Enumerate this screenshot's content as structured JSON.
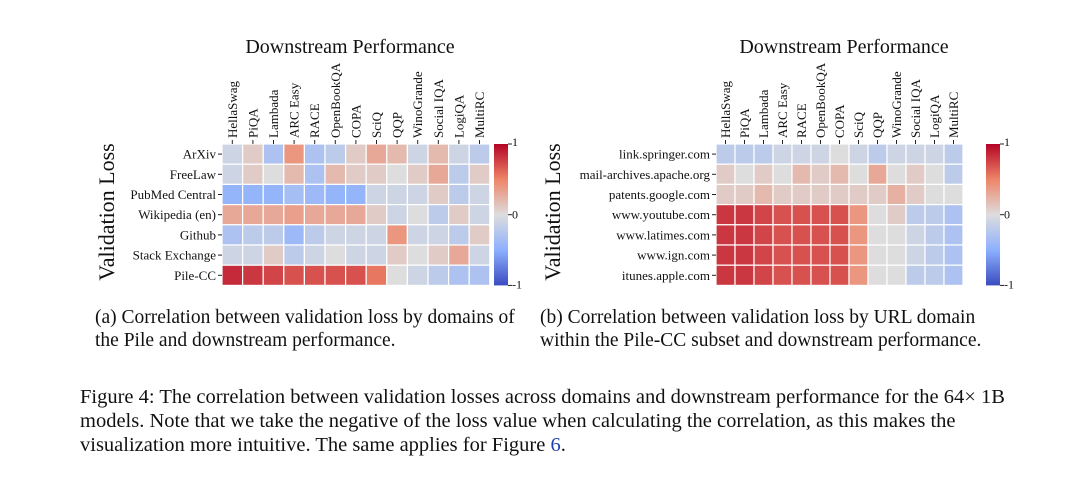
{
  "figure": {
    "label": "Figure 4:",
    "caption_text": "The correlation between validation losses across domains and downstream performance for the 64× 1B models. Note that we take the negative of the loss value when calculating the correlation, as this makes the visualization more intuitive. The same applies for Figure ",
    "caption_ref": "6",
    "caption_end": "."
  },
  "panels": [
    {
      "subcaption": "(a) Correlation between validation loss by domains of the Pile and downstream performance."
    },
    {
      "subcaption": "(b) Correlation between validation loss by URL domain within the Pile-CC subset and downstream performance."
    }
  ],
  "colors": {
    "neg_end": "#3a4cc0",
    "mid": "#dddddd",
    "pos_end": "#b40426"
  },
  "chart_data": [
    {
      "type": "heatmap",
      "title": "Downstream Performance",
      "ylabel": "Validation Loss",
      "columns": [
        "HellaSwag",
        "PiQA",
        "Lambada",
        "ARC Easy",
        "RACE",
        "OpenBookQA",
        "COPA",
        "SciQ",
        "QQP",
        "WinoGrande",
        "Social IQA",
        "LogiQA",
        "MultiRC"
      ],
      "rows": [
        "ArXiv",
        "FreeLaw",
        "PubMed Central",
        "Wikipedia (en)",
        "Github",
        "Stack Exchange",
        "Pile-CC"
      ],
      "values": [
        [
          -0.1,
          0.1,
          -0.3,
          0.4,
          -0.3,
          -0.2,
          0.1,
          0.3,
          0.2,
          -0.1,
          0.2,
          -0.1,
          -0.2
        ],
        [
          -0.1,
          0.1,
          0.0,
          0.2,
          -0.3,
          0.2,
          0.1,
          0.1,
          0.0,
          0.1,
          0.3,
          -0.2,
          0.1
        ],
        [
          -0.45,
          -0.45,
          -0.45,
          -0.35,
          -0.4,
          -0.45,
          -0.45,
          -0.1,
          -0.1,
          -0.1,
          0.1,
          -0.2,
          -0.1
        ],
        [
          0.3,
          0.3,
          0.3,
          0.35,
          0.3,
          0.3,
          0.3,
          0.1,
          -0.1,
          0.0,
          -0.2,
          0.1,
          -0.1
        ],
        [
          -0.3,
          -0.2,
          -0.2,
          -0.4,
          -0.2,
          -0.1,
          -0.1,
          -0.1,
          0.4,
          -0.1,
          -0.1,
          -0.2,
          0.1
        ],
        [
          -0.1,
          -0.1,
          0.1,
          -0.2,
          -0.1,
          0.0,
          -0.1,
          -0.1,
          0.1,
          0.0,
          0.1,
          0.3,
          -0.1
        ],
        [
          0.85,
          0.8,
          0.75,
          0.7,
          0.7,
          0.7,
          0.7,
          0.55,
          0.0,
          -0.1,
          -0.2,
          -0.3,
          -0.3
        ]
      ],
      "colorbar_ticks": [
        1,
        0,
        -1
      ],
      "vmin": -1,
      "vmax": 1
    },
    {
      "type": "heatmap",
      "title": "Downstream Performance",
      "ylabel": "Validation Loss",
      "columns": [
        "HellaSwag",
        "PiQA",
        "Lambada",
        "ARC Easy",
        "RACE",
        "OpenBookQA",
        "COPA",
        "SciQ",
        "QQP",
        "WinoGrande",
        "Social IQA",
        "LogiQA",
        "MultiRC"
      ],
      "rows": [
        "link.springer.com",
        "mail-archives.apache.org",
        "patents.google.com",
        "www.youtube.com",
        "www.latimes.com",
        "www.ign.com",
        "itunes.apple.com"
      ],
      "values": [
        [
          -0.2,
          -0.2,
          -0.2,
          -0.1,
          -0.1,
          -0.1,
          0.0,
          -0.1,
          -0.2,
          -0.1,
          -0.1,
          -0.1,
          -0.2
        ],
        [
          0.1,
          0.0,
          0.1,
          0.0,
          0.2,
          0.1,
          0.2,
          0.0,
          0.3,
          0.0,
          0.1,
          0.0,
          -0.2
        ],
        [
          0.1,
          0.1,
          0.2,
          0.1,
          0.1,
          0.1,
          0.1,
          0.1,
          0.1,
          0.25,
          0.1,
          0.0,
          0.0
        ],
        [
          0.8,
          0.8,
          0.75,
          0.7,
          0.7,
          0.7,
          0.7,
          0.4,
          0.0,
          0.1,
          -0.2,
          -0.2,
          -0.3
        ],
        [
          0.8,
          0.8,
          0.75,
          0.7,
          0.7,
          0.7,
          0.7,
          0.4,
          0.0,
          0.0,
          -0.1,
          -0.2,
          -0.3
        ],
        [
          0.8,
          0.8,
          0.75,
          0.7,
          0.7,
          0.7,
          0.7,
          0.4,
          0.0,
          0.0,
          -0.1,
          -0.2,
          -0.3
        ],
        [
          0.8,
          0.8,
          0.75,
          0.7,
          0.7,
          0.7,
          0.7,
          0.4,
          0.0,
          0.0,
          -0.2,
          -0.2,
          -0.3
        ]
      ],
      "colorbar_ticks": [
        1,
        0,
        -1
      ],
      "vmin": -1,
      "vmax": 1
    }
  ]
}
